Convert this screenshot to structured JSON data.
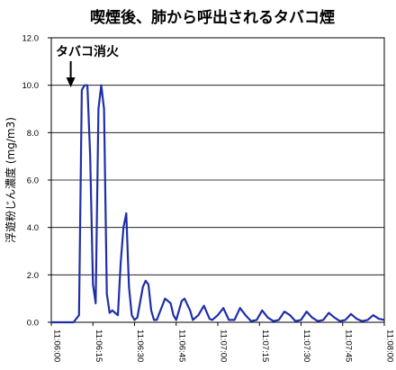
{
  "chart_data": {
    "type": "line",
    "title": "喫煙後、肺から呼出されるタバコ煙",
    "xlabel": "",
    "ylabel": "浮遊粉じん濃度 (mg/m3)",
    "ylim": [
      0,
      12
    ],
    "yticks": [
      "0.0",
      "2.0",
      "4.0",
      "6.0",
      "8.0",
      "10.0",
      "12.0"
    ],
    "xticks": [
      "11:06:00",
      "11:06:15",
      "11:06:30",
      "11:06:45",
      "11:07:00",
      "11:07:15",
      "11:07:30",
      "11:07:45",
      "11:08:00"
    ],
    "xlim": [
      "11:06:00",
      "11:08:00"
    ],
    "grid": "horizontal",
    "legend": "none",
    "line_color": "#1f2fa8",
    "annotation": {
      "text": "タバコ消火",
      "arrow": "down",
      "time": "11:06:07"
    },
    "series": [
      {
        "points": [
          [
            "11:06:00",
            0.0
          ],
          [
            "11:06:08",
            0.0
          ],
          [
            "11:06:10",
            0.3
          ],
          [
            "11:06:11",
            9.8
          ],
          [
            "11:06:12",
            10.0
          ],
          [
            "11:06:13",
            10.0
          ],
          [
            "11:06:14",
            7.0
          ],
          [
            "11:06:15",
            1.6
          ],
          [
            "11:06:16",
            0.8
          ],
          [
            "11:06:17",
            9.0
          ],
          [
            "11:06:18",
            10.0
          ],
          [
            "11:06:19",
            9.0
          ],
          [
            "11:06:20",
            1.2
          ],
          [
            "11:06:21",
            0.4
          ],
          [
            "11:06:22",
            0.5
          ],
          [
            "11:06:23",
            0.4
          ],
          [
            "11:06:24",
            0.3
          ],
          [
            "11:06:25",
            2.5
          ],
          [
            "11:06:26",
            4.0
          ],
          [
            "11:06:27",
            4.6
          ],
          [
            "11:06:28",
            1.5
          ],
          [
            "11:06:29",
            0.3
          ],
          [
            "11:06:30",
            0.1
          ],
          [
            "11:06:31",
            0.2
          ],
          [
            "11:06:33",
            1.5
          ],
          [
            "11:06:34",
            1.75
          ],
          [
            "11:06:35",
            1.6
          ],
          [
            "11:06:36",
            0.5
          ],
          [
            "11:06:37",
            0.1
          ],
          [
            "11:06:38",
            0.1
          ],
          [
            "11:06:41",
            1.0
          ],
          [
            "11:06:43",
            0.8
          ],
          [
            "11:06:44",
            0.3
          ],
          [
            "11:06:45",
            0.1
          ],
          [
            "11:06:47",
            0.9
          ],
          [
            "11:06:48",
            1.0
          ],
          [
            "11:06:50",
            0.5
          ],
          [
            "11:06:51",
            0.1
          ],
          [
            "11:06:53",
            0.3
          ],
          [
            "11:06:55",
            0.7
          ],
          [
            "11:06:57",
            0.15
          ],
          [
            "11:06:58",
            0.1
          ],
          [
            "11:07:00",
            0.3
          ],
          [
            "11:07:02",
            0.6
          ],
          [
            "11:07:04",
            0.1
          ],
          [
            "11:07:06",
            0.1
          ],
          [
            "11:07:08",
            0.6
          ],
          [
            "11:07:10",
            0.3
          ],
          [
            "11:07:12",
            0.05
          ],
          [
            "11:07:14",
            0.1
          ],
          [
            "11:07:16",
            0.5
          ],
          [
            "11:07:18",
            0.2
          ],
          [
            "11:07:20",
            0.05
          ],
          [
            "11:07:22",
            0.1
          ],
          [
            "11:07:24",
            0.45
          ],
          [
            "11:07:26",
            0.3
          ],
          [
            "11:07:28",
            0.05
          ],
          [
            "11:07:30",
            0.1
          ],
          [
            "11:07:32",
            0.45
          ],
          [
            "11:07:34",
            0.2
          ],
          [
            "11:07:36",
            0.05
          ],
          [
            "11:07:38",
            0.1
          ],
          [
            "11:07:40",
            0.4
          ],
          [
            "11:07:42",
            0.2
          ],
          [
            "11:07:44",
            0.05
          ],
          [
            "11:07:46",
            0.1
          ],
          [
            "11:07:48",
            0.35
          ],
          [
            "11:07:50",
            0.15
          ],
          [
            "11:07:52",
            0.05
          ],
          [
            "11:07:54",
            0.1
          ],
          [
            "11:07:56",
            0.3
          ],
          [
            "11:07:58",
            0.15
          ],
          [
            "11:08:00",
            0.1
          ]
        ]
      }
    ]
  }
}
